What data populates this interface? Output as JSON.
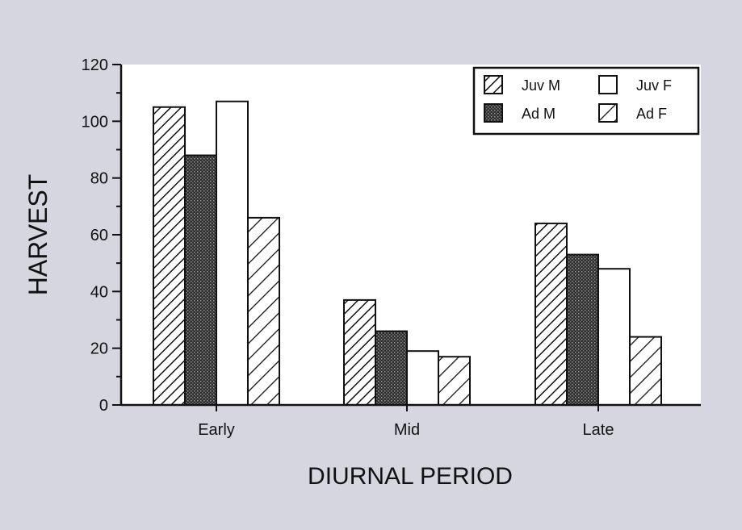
{
  "chart_data": {
    "type": "bar",
    "title": "",
    "xlabel": "DIURNAL PERIOD",
    "ylabel": "HARVEST",
    "categories": [
      "Early",
      "Mid",
      "Late"
    ],
    "ylim": [
      0,
      120
    ],
    "yticks": [
      0,
      20,
      40,
      60,
      80,
      100,
      120
    ],
    "grid": false,
    "legend_position": "top-right",
    "series": [
      {
        "name": "Juv M",
        "pattern": "hatch-dense",
        "values": [
          105,
          37,
          64
        ]
      },
      {
        "name": "Ad M",
        "pattern": "dots-dark",
        "values": [
          88,
          26,
          53
        ]
      },
      {
        "name": "Juv F",
        "pattern": "solid-white",
        "values": [
          107,
          19,
          48
        ]
      },
      {
        "name": "Ad F",
        "pattern": "hatch-sparse",
        "values": [
          66,
          17,
          24
        ]
      }
    ],
    "colors": {
      "ink": "#111111",
      "plot_bg": "#ffffff",
      "page_bg": "#d6d6e0"
    }
  }
}
